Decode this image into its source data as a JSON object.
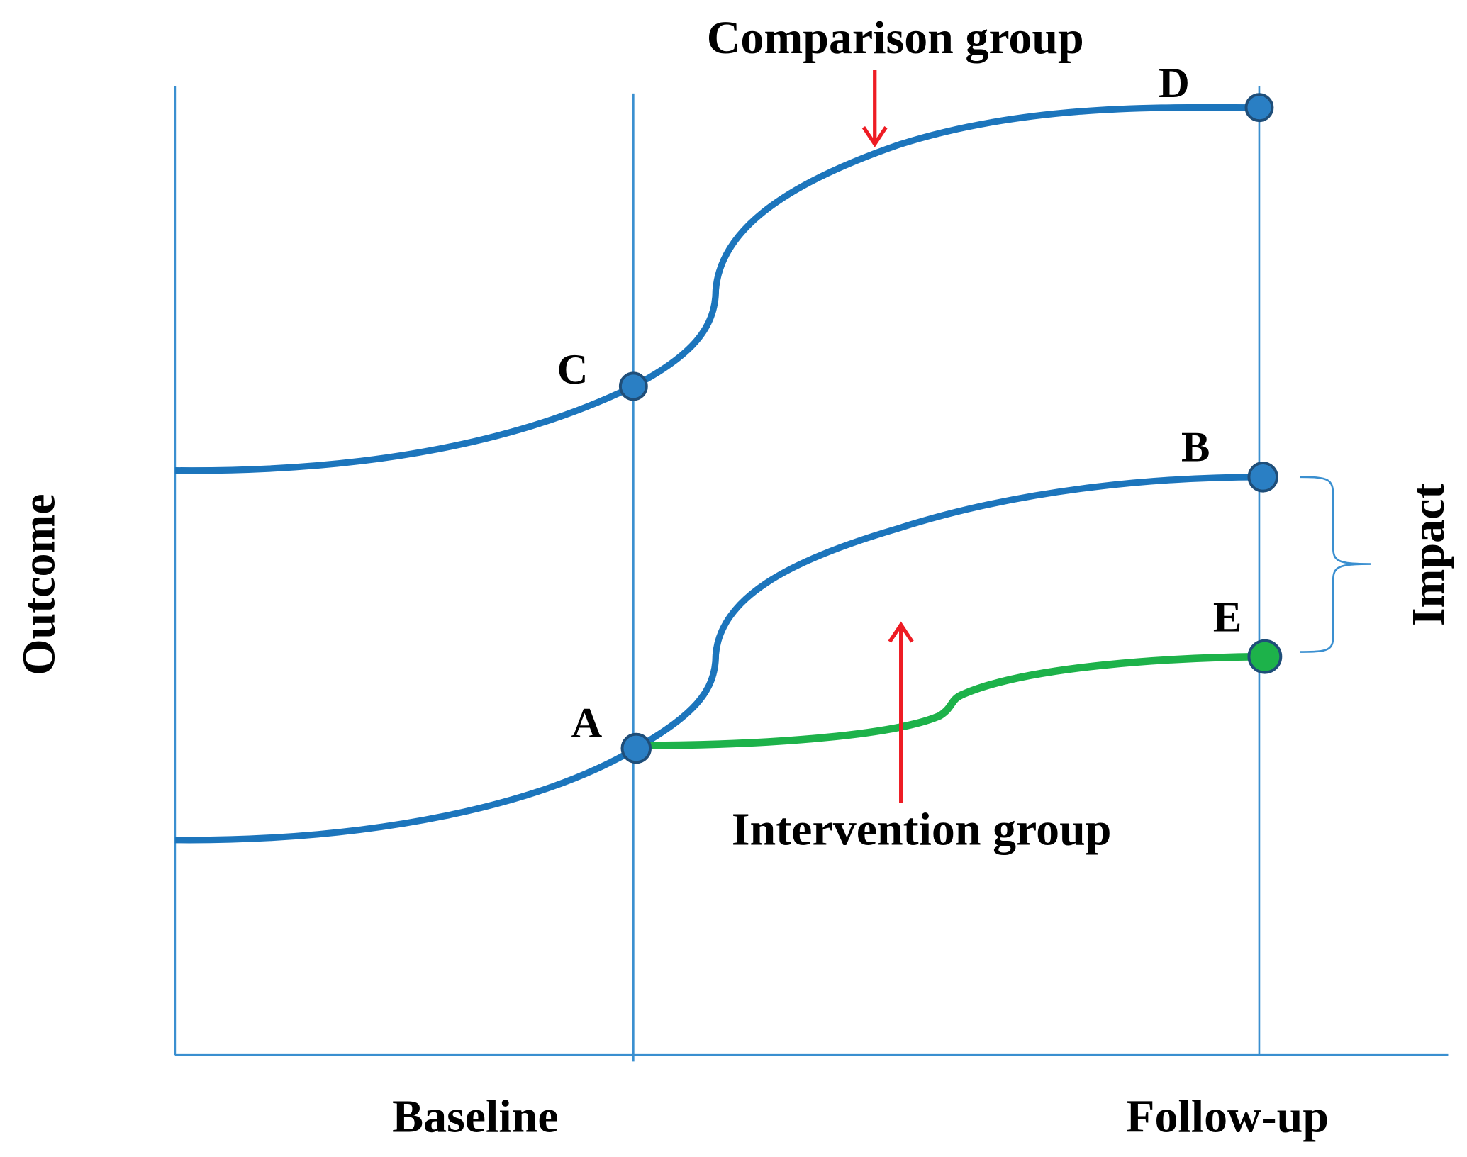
{
  "annotations": {
    "comparison": "Comparison group",
    "intervention": "Intervention group"
  },
  "axes": {
    "y": "Outcome",
    "x_start": "Baseline",
    "x_end": "Follow-up"
  },
  "bracket": "Impact",
  "points": [
    "A",
    "B",
    "C",
    "D",
    "E"
  ]
}
